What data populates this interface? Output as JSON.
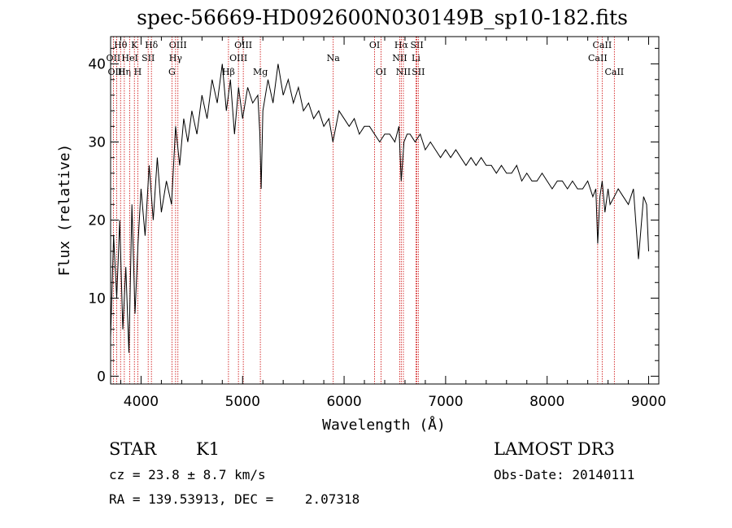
{
  "chart_data": {
    "type": "line",
    "title": "spec-56669-HD092600N030149B_sp10-182.fits",
    "xlabel": "Wavelength (Å)",
    "ylabel": "Flux (relative)",
    "xlim": [
      3700,
      9100
    ],
    "ylim": [
      -1,
      43.5
    ],
    "xticks": [
      4000,
      5000,
      6000,
      7000,
      8000,
      9000
    ],
    "yticks": [
      0,
      10,
      20,
      30,
      40
    ],
    "grid": false,
    "series": [
      {
        "x": [
          3700,
          3730,
          3760,
          3790,
          3820,
          3850,
          3880,
          3910,
          3940,
          3970,
          4000,
          4040,
          4080,
          4120,
          4160,
          4200,
          4250,
          4300,
          4340,
          4380,
          4420,
          4460,
          4500,
          4550,
          4600,
          4650,
          4700,
          4750,
          4800,
          4840,
          4880,
          4920,
          4960,
          5000,
          5050,
          5100,
          5150,
          5170,
          5183,
          5200,
          5250,
          5300,
          5350,
          5400,
          5450,
          5500,
          5550,
          5600,
          5650,
          5700,
          5750,
          5800,
          5850,
          5890,
          5950,
          6000,
          6050,
          6100,
          6150,
          6200,
          6250,
          6300,
          6350,
          6400,
          6450,
          6500,
          6540,
          6563,
          6590,
          6620,
          6650,
          6700,
          6750,
          6800,
          6850,
          6900,
          6950,
          7000,
          7050,
          7100,
          7150,
          7200,
          7250,
          7300,
          7350,
          7400,
          7450,
          7500,
          7550,
          7600,
          7650,
          7700,
          7750,
          7800,
          7850,
          7900,
          7950,
          8000,
          8050,
          8100,
          8150,
          8200,
          8250,
          8300,
          8350,
          8400,
          8450,
          8480,
          8498,
          8520,
          8542,
          8570,
          8600,
          8620,
          8662,
          8700,
          8750,
          8800,
          8850,
          8900,
          8950,
          8980,
          9000
        ],
        "y": [
          5,
          18,
          10,
          20,
          6,
          14,
          3,
          22,
          8,
          17,
          24,
          18,
          27,
          20,
          28,
          21,
          25,
          22,
          32,
          27,
          33,
          30,
          34,
          31,
          36,
          33,
          38,
          35,
          40,
          34,
          38,
          31,
          37,
          33,
          37,
          35,
          36,
          31,
          24,
          34,
          38,
          35,
          40,
          36,
          38,
          35,
          37,
          34,
          35,
          33,
          34,
          32,
          33,
          30,
          34,
          33,
          32,
          33,
          31,
          32,
          32,
          31,
          30,
          31,
          31,
          30,
          32,
          25,
          30,
          31,
          31,
          30,
          31,
          29,
          30,
          29,
          28,
          29,
          28,
          29,
          28,
          27,
          28,
          27,
          28,
          27,
          27,
          26,
          27,
          26,
          26,
          27,
          25,
          26,
          25,
          25,
          26,
          25,
          24,
          25,
          25,
          24,
          25,
          24,
          24,
          25,
          23,
          24,
          17,
          23,
          25,
          21,
          24,
          22,
          23,
          24,
          23,
          22,
          24,
          15,
          23,
          22,
          16
        ]
      }
    ],
    "spectral_lines": [
      {
        "label": "Hθ",
        "x": 3798,
        "row": 0
      },
      {
        "label": "OII",
        "x": 3727,
        "row": 1
      },
      {
        "label": "OIII",
        "x": 3760,
        "row": 2
      },
      {
        "label": "Hη",
        "x": 3835,
        "row": 2
      },
      {
        "label": "HeI",
        "x": 3889,
        "row": 1
      },
      {
        "label": "K",
        "x": 3934,
        "row": 0
      },
      {
        "label": "H",
        "x": 3968,
        "row": 2
      },
      {
        "label": "SII",
        "x": 4070,
        "row": 1
      },
      {
        "label": "Hδ",
        "x": 4102,
        "row": 0
      },
      {
        "label": "OIII",
        "x": 4363,
        "row": 0
      },
      {
        "label": "Hγ",
        "x": 4340,
        "row": 1
      },
      {
        "label": "G",
        "x": 4304,
        "row": 2
      },
      {
        "label": "Hβ",
        "x": 4861,
        "row": 2
      },
      {
        "label": "OIII",
        "x": 4959,
        "row": 1
      },
      {
        "label": "OIII",
        "x": 5007,
        "row": 0
      },
      {
        "label": "Mg",
        "x": 5175,
        "row": 2
      },
      {
        "label": "Na",
        "x": 5893,
        "row": 1
      },
      {
        "label": "OI",
        "x": 6300,
        "row": 0
      },
      {
        "label": "OI",
        "x": 6364,
        "row": 2
      },
      {
        "label": "Hα",
        "x": 6563,
        "row": 0
      },
      {
        "label": "NII",
        "x": 6548,
        "row": 1
      },
      {
        "label": "NII",
        "x": 6584,
        "row": 2
      },
      {
        "label": "SII",
        "x": 6717,
        "row": 0
      },
      {
        "label": "Li",
        "x": 6708,
        "row": 1
      },
      {
        "label": "SII",
        "x": 6731,
        "row": 2
      },
      {
        "label": "CaII",
        "x": 8542,
        "row": 0
      },
      {
        "label": "CaII",
        "x": 8498,
        "row": 1
      },
      {
        "label": "CaII",
        "x": 8662,
        "row": 2
      }
    ]
  },
  "info": {
    "object_class": "STAR",
    "subclass": "K1",
    "survey": "LAMOST DR3",
    "cz": "cz = 23.8 ± 8.7 km/s",
    "obs_date": "Obs-Date: 20140111",
    "coords": "RA = 139.53913, DEC =    2.07318"
  },
  "colors": {
    "spectrum": "#000000",
    "line_markers": "#cc0000"
  }
}
